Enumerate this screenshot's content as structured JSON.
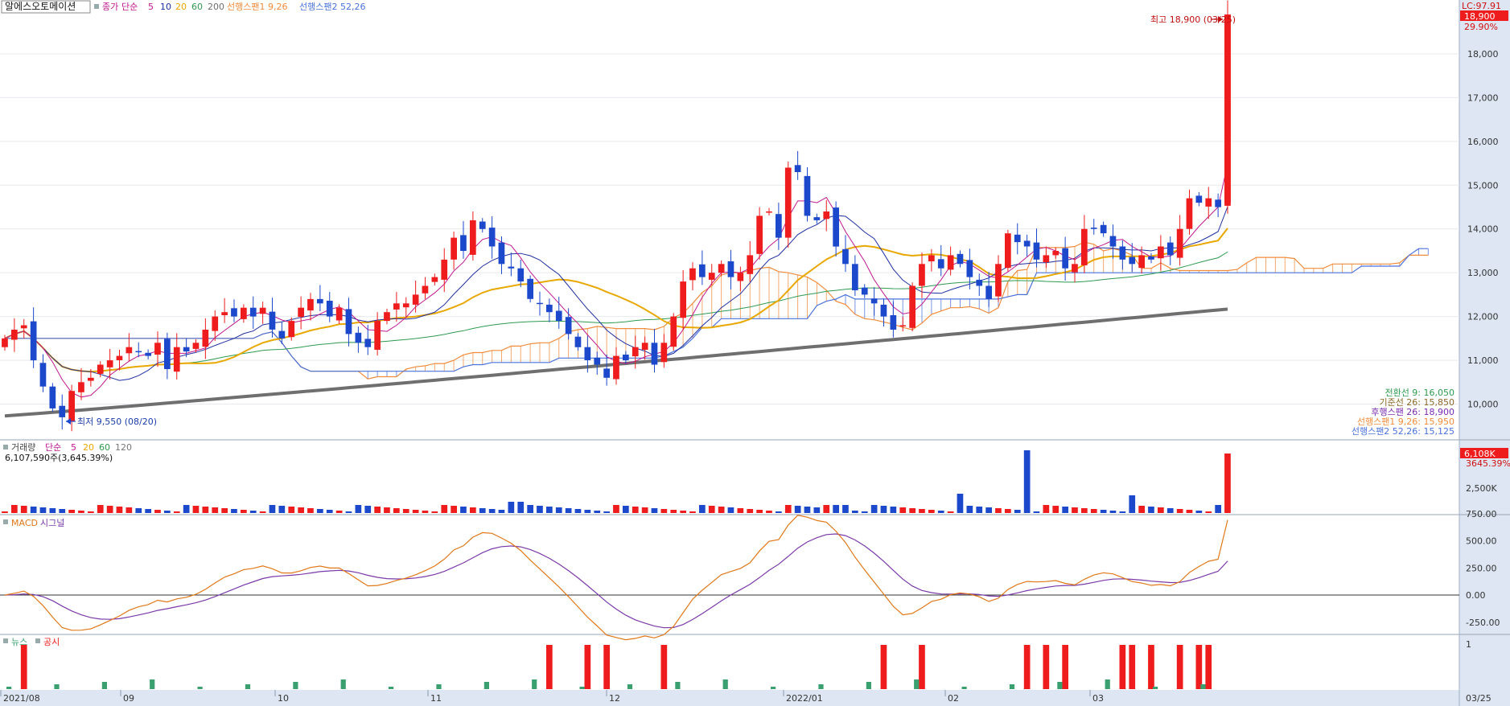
{
  "stock_name": "알에스오토메이션",
  "main_legend": {
    "price": "종가",
    "ma_type": "단순",
    "ma_periods": [
      "5",
      "10",
      "20",
      "60",
      "200"
    ],
    "span1_label": "선행스팬1 9,26",
    "span2_label": "선행스팬2 52,26"
  },
  "lc_label": "LC:97.91",
  "current_price_tag": "18,900",
  "current_change_tag": "29.90%",
  "high_annotation": "최고 18,900 (03/25)",
  "low_annotation": "최저 9,550 (08/20)",
  "price_axis_labels": [
    "18,000",
    "17,000",
    "16,000",
    "15,000",
    "14,000",
    "13,000",
    "12,000",
    "11,000",
    "10,000"
  ],
  "ichimoku_info": [
    "전환선 9: 16,050",
    "기준선 26: 15,850",
    "후행스팬 26: 18,900",
    "선행스팬1 9,26: 15,950",
    "선행스팬2 52,26: 15,125"
  ],
  "volume_legend": {
    "name": "거래량",
    "ma_type": "단순",
    "periods": [
      "5",
      "20",
      "60",
      "120"
    ]
  },
  "volume_info": "6,107,590주(3,645.39%)",
  "volume_tag": "6,108K",
  "volume_pct_tag": "3645.39%",
  "volume_axis_label": "2,500K",
  "macd_legend": {
    "macd": "MACD",
    "signal": "시그널"
  },
  "macd_axis_labels": [
    "750.00",
    "500.00",
    "250.00",
    "0.00",
    "-250.00"
  ],
  "news_legend": {
    "news": "뉴스",
    "disclosure": "공시"
  },
  "news_axis_label": "1",
  "date_axis_labels": [
    "2021/08",
    "09",
    "10",
    "11",
    "12",
    "2022/01",
    "02",
    "03"
  ],
  "date_axis_right": "03/25",
  "colors": {
    "up": "#ee1c1c",
    "down": "#1c48cc",
    "ma5": "#c0188e",
    "ma10": "#2030a0",
    "ma20": "#e8a800",
    "ma60": "#2e9a50",
    "ma200": "#6f6f6f",
    "span1": "#f08c3c",
    "span2": "#4a72dc",
    "macd": "#e07818",
    "signal": "#7a3aa8",
    "news": "#3aa070",
    "disclosure": "#ee1c1c"
  },
  "chart_data": {
    "type": "candlestick",
    "period": "daily",
    "date_range": [
      "2021/08",
      "03/25"
    ],
    "x_axis_labels": [
      "2021/08",
      "09",
      "10",
      "11",
      "12",
      "2022/01",
      "02",
      "03"
    ],
    "price_ylim": [
      9500,
      19000
    ],
    "high": {
      "value": 18900,
      "date": "03/25"
    },
    "low": {
      "value": 9550,
      "date": "08/20"
    },
    "last_close": 18900,
    "change_pct": 29.9,
    "closes_approx": [
      11500,
      11700,
      11800,
      11000,
      10400,
      9900,
      9700,
      10300,
      10500,
      10600,
      10900,
      11000,
      11100,
      11300,
      11200,
      11100,
      11400,
      10800,
      11300,
      11200,
      11400,
      11700,
      12000,
      12100,
      12000,
      12200,
      12000,
      12200,
      11700,
      11500,
      11900,
      12200,
      12400,
      12300,
      12000,
      12200,
      11600,
      11400,
      11300,
      11900,
      12100,
      12300,
      12300,
      12500,
      12700,
      12900,
      13300,
      13800,
      13500,
      14200,
      14000,
      13600,
      13200,
      13100,
      12800,
      12400,
      12300,
      12100,
      11900,
      11600,
      11300,
      11000,
      10900,
      10600,
      11100,
      11000,
      11300,
      11400,
      10900,
      11400,
      12000,
      12800,
      13100,
      12900,
      13000,
      13200,
      12900,
      13000,
      13400,
      14300,
      14400,
      13800,
      15400,
      15300,
      14300,
      14200,
      14400,
      13600,
      13200,
      12600,
      12500,
      12300,
      12000,
      11700,
      11800,
      12700,
      13200,
      13400,
      13100,
      13400,
      13200,
      12900,
      12700,
      12400,
      13200,
      13900,
      13700,
      13600,
      13300,
      13400,
      13500,
      13100,
      13200,
      14000,
      14000,
      13900,
      13600,
      13300,
      13200,
      13400,
      13300,
      13600,
      13400,
      14000,
      14700,
      14600,
      14700,
      14500,
      18900
    ],
    "series": [
      {
        "name": "전환선 9",
        "last": 16050
      },
      {
        "name": "기준선 26",
        "last": 15850
      },
      {
        "name": "후행스팬 26",
        "last": 18900
      },
      {
        "name": "선행스팬1 9,26",
        "last": 15950
      },
      {
        "name": "선행스팬2 52,26",
        "last": 15125
      }
    ],
    "volume": {
      "last": 6107590,
      "last_pct": 3645.39,
      "ylim_label": "2,500K"
    },
    "macd": {
      "ylim": [
        -400,
        800
      ],
      "macd_last": 690,
      "signal_last": 340
    },
    "news_events": {
      "news_count": 26,
      "disclosure_count": 16
    }
  }
}
